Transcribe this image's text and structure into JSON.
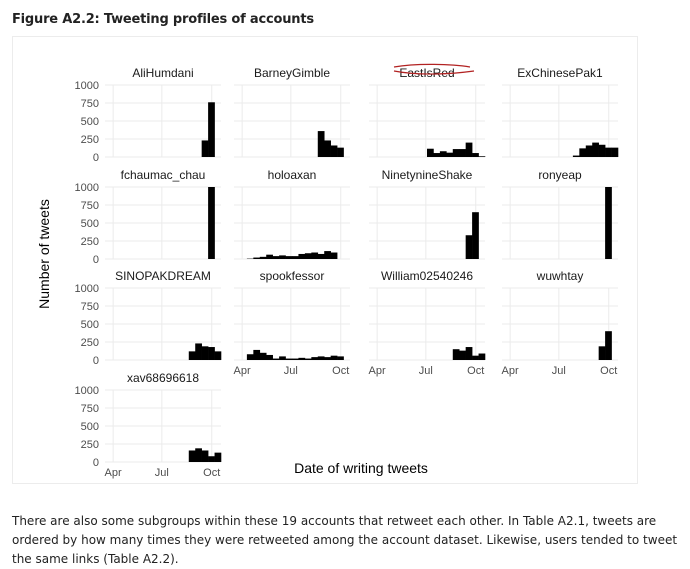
{
  "figure_title": "Figure A2.2: Tweeting profiles of accounts",
  "body_text": "There are also some subgroups within these 19 accounts that retweet each other. In Table A2.1, tweets are ordered by how many times they were retweeted among the account dataset. Likewise, users tended to tweet the same links (Table A2.2).",
  "chart_data": {
    "type": "bar",
    "subtype": "faceted-histogram",
    "xlabel": "Date of writing tweets",
    "ylabel": "Number of tweets",
    "x_ticks": [
      "Apr",
      "Jul",
      "Oct"
    ],
    "y_ticks": [
      0,
      250,
      500,
      750,
      1000
    ],
    "ylim": [
      0,
      1000
    ],
    "grid": true,
    "legend": "none",
    "bar_color": "#000000",
    "grid_color": "#ebebeb",
    "bins": [
      "Mar-A",
      "Mar-B",
      "Apr-A",
      "Apr-B",
      "May-A",
      "May-B",
      "Jun-A",
      "Jun-B",
      "Jul-A",
      "Jul-B",
      "Aug-A",
      "Aug-B",
      "Sep-A",
      "Sep-B",
      "Oct-A",
      "Oct-B",
      "Nov-A",
      "Nov-B"
    ],
    "panels": [
      {
        "name": "AliHumdani",
        "values": [
          0,
          0,
          0,
          0,
          0,
          0,
          0,
          0,
          0,
          0,
          0,
          0,
          0,
          0,
          0,
          230,
          760,
          0
        ]
      },
      {
        "name": "BarneyGimble",
        "values": [
          0,
          0,
          0,
          0,
          0,
          0,
          0,
          0,
          0,
          0,
          0,
          0,
          0,
          360,
          230,
          160,
          130,
          0
        ]
      },
      {
        "name": "EastIsRed",
        "values": [
          0,
          0,
          0,
          0,
          0,
          0,
          0,
          0,
          0,
          115,
          55,
          80,
          60,
          110,
          110,
          200,
          55,
          10
        ]
      },
      {
        "name": "ExChinesePak1",
        "values": [
          0,
          0,
          0,
          0,
          0,
          0,
          0,
          0,
          0,
          0,
          0,
          20,
          120,
          160,
          200,
          170,
          130,
          130
        ]
      },
      {
        "name": "fchaumac_chau",
        "values": [
          0,
          0,
          0,
          0,
          0,
          0,
          0,
          0,
          0,
          0,
          0,
          0,
          0,
          0,
          0,
          0,
          1000,
          0
        ]
      },
      {
        "name": "holoaxan",
        "values": [
          0,
          0,
          5,
          20,
          30,
          60,
          40,
          50,
          40,
          40,
          70,
          80,
          90,
          70,
          110,
          90,
          0,
          0
        ]
      },
      {
        "name": "NinetynineShake",
        "values": [
          0,
          0,
          0,
          0,
          0,
          0,
          0,
          0,
          0,
          0,
          0,
          0,
          0,
          0,
          0,
          330,
          650,
          0
        ]
      },
      {
        "name": "ronyeap",
        "values": [
          0,
          0,
          0,
          0,
          0,
          0,
          0,
          0,
          0,
          0,
          0,
          0,
          0,
          0,
          0,
          0,
          1000,
          0
        ]
      },
      {
        "name": "SINOPAKDREAM",
        "values": [
          0,
          0,
          0,
          0,
          0,
          0,
          0,
          0,
          0,
          0,
          0,
          0,
          0,
          120,
          230,
          190,
          180,
          120
        ]
      },
      {
        "name": "spookfessor",
        "values": [
          0,
          0,
          80,
          140,
          100,
          70,
          20,
          50,
          20,
          20,
          30,
          20,
          40,
          50,
          40,
          60,
          50,
          0
        ]
      },
      {
        "name": "William02540246",
        "values": [
          0,
          0,
          0,
          0,
          0,
          0,
          0,
          0,
          0,
          0,
          0,
          0,
          0,
          150,
          130,
          180,
          60,
          90
        ]
      },
      {
        "name": "wuwhtay",
        "values": [
          0,
          0,
          0,
          0,
          0,
          0,
          0,
          0,
          0,
          0,
          0,
          0,
          0,
          0,
          0,
          190,
          400,
          0
        ]
      },
      {
        "name": "xav68696618",
        "values": [
          0,
          0,
          0,
          0,
          0,
          0,
          0,
          0,
          0,
          0,
          0,
          0,
          0,
          160,
          190,
          160,
          80,
          130
        ]
      }
    ]
  }
}
